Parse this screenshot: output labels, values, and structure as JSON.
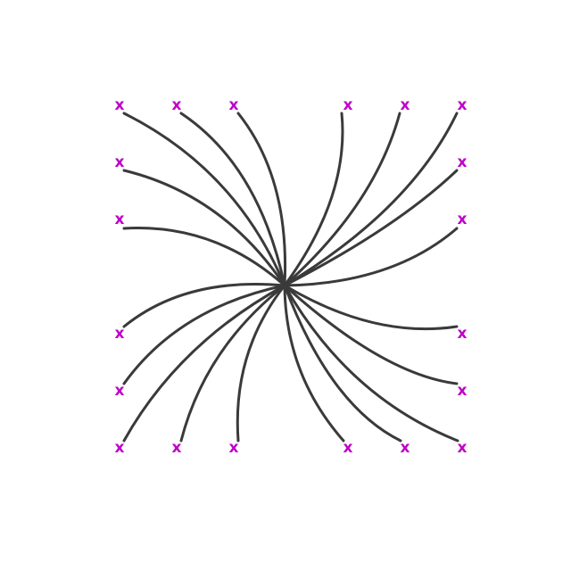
{
  "colors": {
    "curve": "#3a3a3a",
    "marker": "#c000c8",
    "background": "#ffffff"
  },
  "marker_glyph": "x",
  "terminals": [
    {
      "id": "top-1",
      "label": "x"
    },
    {
      "id": "top-2",
      "label": "x"
    },
    {
      "id": "top-3",
      "label": "x"
    },
    {
      "id": "top-4",
      "label": "x"
    },
    {
      "id": "top-5",
      "label": "x"
    },
    {
      "id": "top-6",
      "label": "x"
    },
    {
      "id": "left-1",
      "label": "x"
    },
    {
      "id": "left-2",
      "label": "x"
    },
    {
      "id": "left-3",
      "label": "x"
    },
    {
      "id": "left-4",
      "label": "x"
    },
    {
      "id": "right-1",
      "label": "x"
    },
    {
      "id": "right-2",
      "label": "x"
    },
    {
      "id": "right-3",
      "label": "x"
    },
    {
      "id": "right-4",
      "label": "x"
    },
    {
      "id": "bottom-1",
      "label": "x"
    },
    {
      "id": "bottom-2",
      "label": "x"
    },
    {
      "id": "bottom-3",
      "label": "x"
    },
    {
      "id": "bottom-4",
      "label": "x"
    },
    {
      "id": "bottom-5",
      "label": "x"
    },
    {
      "id": "bottom-6",
      "label": "x"
    }
  ]
}
